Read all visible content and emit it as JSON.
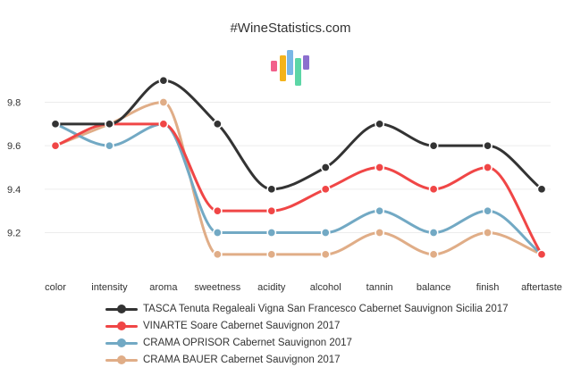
{
  "chart_data": {
    "type": "line",
    "title": "#WineStatistics.com",
    "categories": [
      "color",
      "intensity",
      "aroma",
      "sweetness",
      "acidity",
      "alcohol",
      "tannin",
      "balance",
      "finish",
      "aftertaste"
    ],
    "ylim": [
      9.05,
      9.95
    ],
    "yticks": [
      9.2,
      9.4,
      9.6,
      9.8
    ],
    "ytick_labels": [
      "9.2",
      "9.4",
      "9.6",
      "9.8"
    ],
    "grid": true,
    "legend_position": "bottom",
    "series": [
      {
        "name": "TASCA Tenuta Regaleali Vigna San Francesco Cabernet Sauvignon Sicilia 2017",
        "color": "#333333",
        "values": [
          9.7,
          9.7,
          9.9,
          9.7,
          9.4,
          9.5,
          9.7,
          9.6,
          9.6,
          9.4
        ]
      },
      {
        "name": "VINARTE Soare Cabernet Sauvignon 2017",
        "color": "#f04646",
        "values": [
          9.6,
          9.7,
          9.7,
          9.3,
          9.3,
          9.4,
          9.5,
          9.4,
          9.5,
          9.1
        ]
      },
      {
        "name": "CRAMA OPRISOR Cabernet Sauvignon 2017",
        "color": "#72a9c4",
        "values": [
          9.7,
          9.6,
          9.7,
          9.2,
          9.2,
          9.2,
          9.3,
          9.2,
          9.3,
          9.1
        ]
      },
      {
        "name": "CRAMA BAUER Cabernet Sauvignon 2017",
        "color": "#e0ad87",
        "values": [
          9.6,
          9.7,
          9.8,
          9.1,
          9.1,
          9.1,
          9.2,
          9.1,
          9.2,
          9.1
        ]
      }
    ]
  },
  "logo": {
    "bar_colors": [
      "#f25f8a",
      "#f4b31b",
      "#7ab7e6",
      "#5cd6a6",
      "#8c6fce"
    ]
  }
}
